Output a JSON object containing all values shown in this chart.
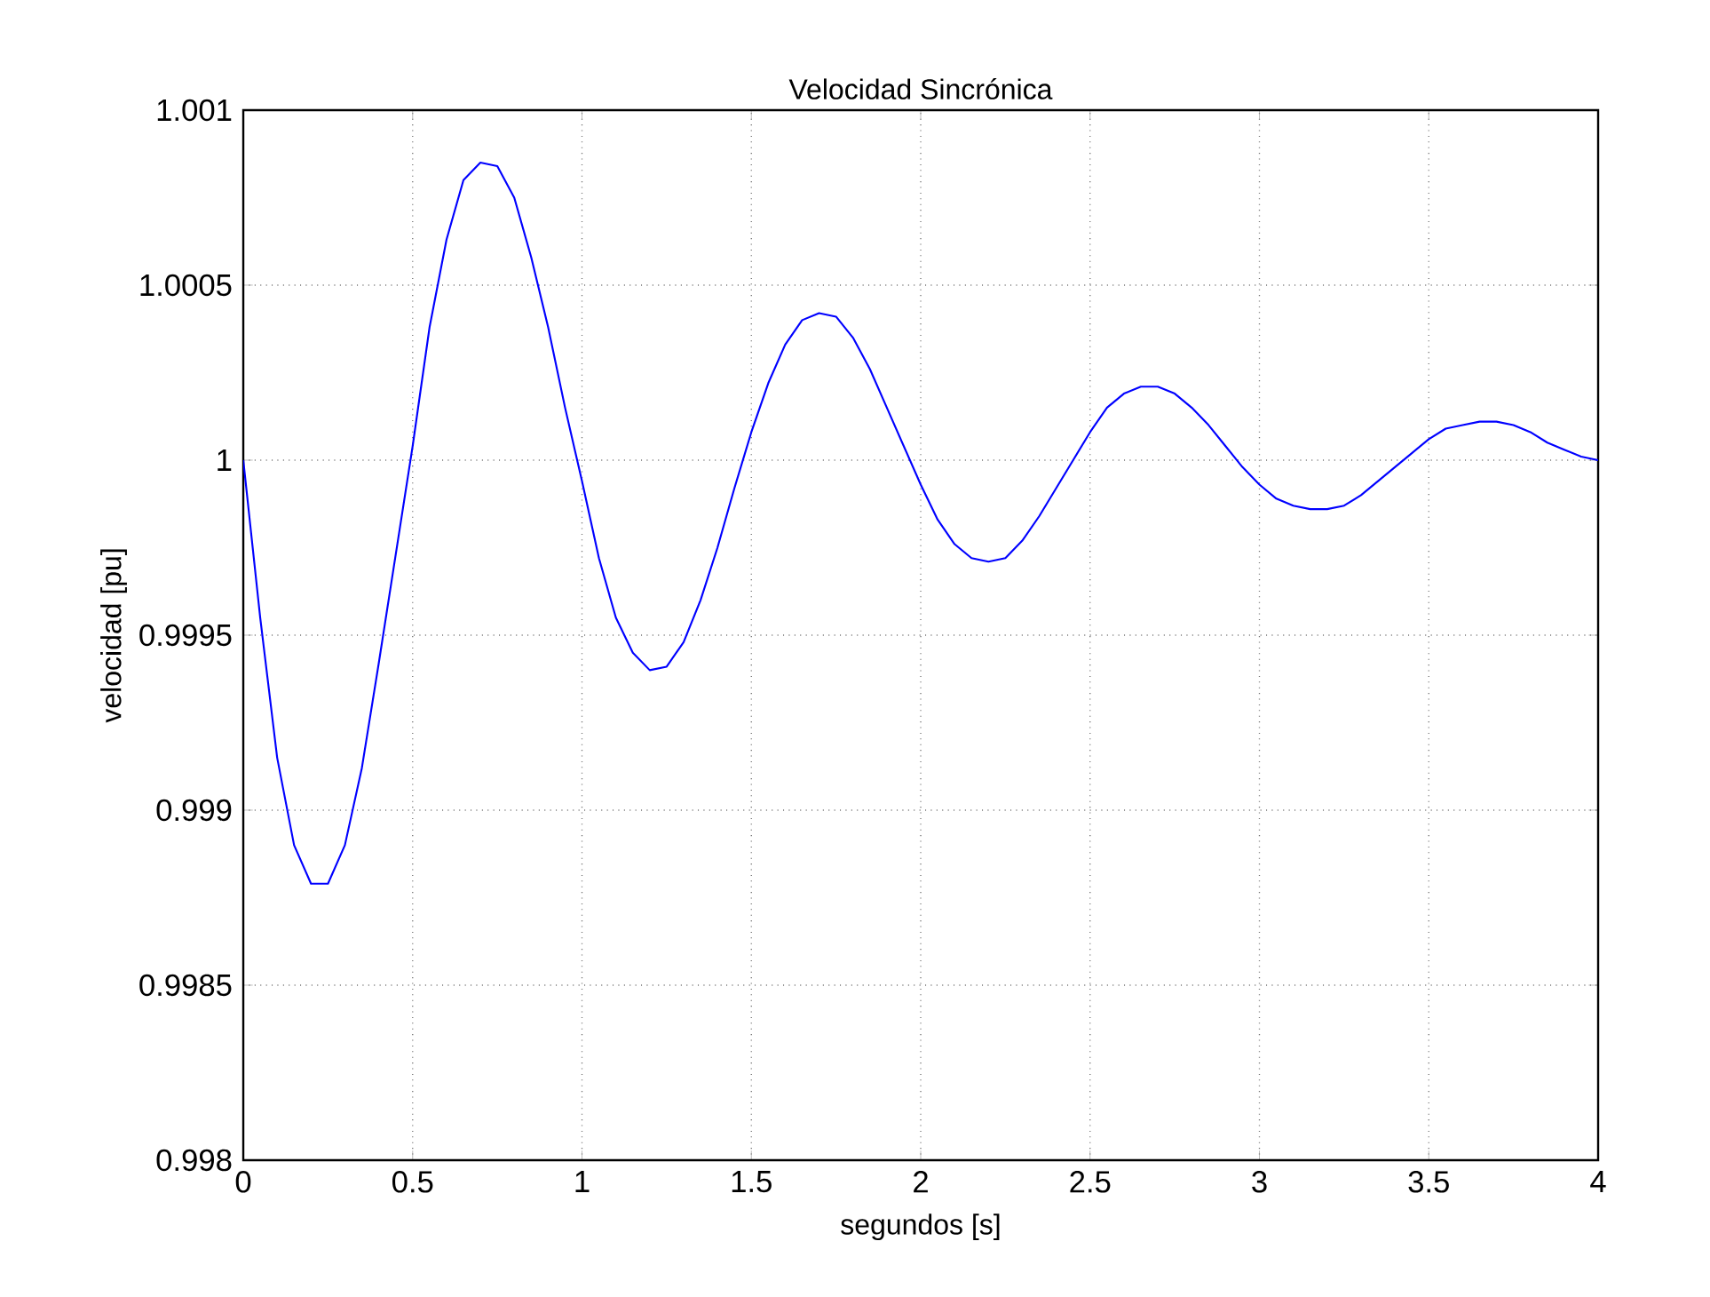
{
  "chart_data": {
    "type": "line",
    "title": "Velocidad Sincrónica",
    "xlabel": "segundos [s]",
    "ylabel": "velocidad [pu]",
    "x": [
      0,
      0.05,
      0.1,
      0.15,
      0.2,
      0.25,
      0.3,
      0.35,
      0.4,
      0.45,
      0.5,
      0.55,
      0.6,
      0.65,
      0.7,
      0.75,
      0.8,
      0.85,
      0.9,
      0.95,
      1.0,
      1.05,
      1.1,
      1.15,
      1.2,
      1.25,
      1.3,
      1.35,
      1.4,
      1.45,
      1.5,
      1.55,
      1.6,
      1.65,
      1.7,
      1.75,
      1.8,
      1.85,
      1.9,
      1.95,
      2.0,
      2.05,
      2.1,
      2.15,
      2.2,
      2.25,
      2.3,
      2.35,
      2.4,
      2.45,
      2.5,
      2.55,
      2.6,
      2.65,
      2.7,
      2.75,
      2.8,
      2.85,
      2.9,
      2.95,
      3.0,
      3.05,
      3.1,
      3.15,
      3.2,
      3.25,
      3.3,
      3.35,
      3.4,
      3.45,
      3.5,
      3.55,
      3.6,
      3.65,
      3.7,
      3.75,
      3.8,
      3.85,
      3.9,
      3.95,
      4.0
    ],
    "values": [
      1.0,
      0.99955,
      0.99915,
      0.9989,
      0.99879,
      0.99879,
      0.9989,
      0.99912,
      0.99942,
      0.99973,
      1.00004,
      1.00038,
      1.00063,
      1.0008,
      1.00085,
      1.00084,
      1.00075,
      1.00058,
      1.00038,
      1.00015,
      0.99994,
      0.99972,
      0.99955,
      0.99945,
      0.9994,
      0.99941,
      0.99948,
      0.9996,
      0.99975,
      0.99992,
      1.00008,
      1.00022,
      1.00033,
      1.0004,
      1.00042,
      1.00041,
      1.00035,
      1.00026,
      1.00015,
      1.00004,
      0.99993,
      0.99983,
      0.99976,
      0.99972,
      0.99971,
      0.99972,
      0.99977,
      0.99984,
      0.99992,
      1.0,
      1.00008,
      1.00015,
      1.00019,
      1.00021,
      1.00021,
      1.00019,
      1.00015,
      1.0001,
      1.00004,
      0.99998,
      0.99993,
      0.99989,
      0.99987,
      0.99986,
      0.99986,
      0.99987,
      0.9999,
      0.99994,
      0.99998,
      1.00002,
      1.00006,
      1.00009,
      1.0001,
      1.00011,
      1.00011,
      1.0001,
      1.00008,
      1.00005,
      1.00003,
      1.00001,
      1.0
    ],
    "color": "#0000ff",
    "xlim": [
      0,
      4
    ],
    "ylim": [
      0.998,
      1.001
    ],
    "xticks": [
      0,
      0.5,
      1,
      1.5,
      2,
      2.5,
      3,
      3.5,
      4
    ],
    "yticks": [
      0.998,
      0.9985,
      0.999,
      0.9995,
      1,
      1.0005,
      1.001
    ],
    "grid": true
  }
}
